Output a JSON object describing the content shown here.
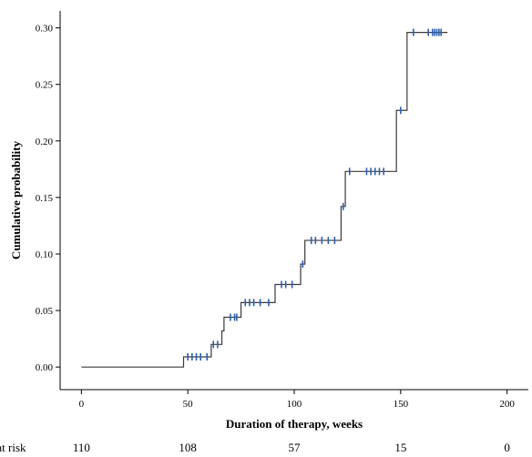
{
  "chart_data": {
    "type": "step",
    "xlabel": "Duration of therapy, weeks",
    "ylabel": "Cumulative probability",
    "xlim": [
      -10,
      210
    ],
    "ylim": [
      -0.02,
      0.315
    ],
    "x_ticks": [
      0,
      50,
      100,
      150,
      200
    ],
    "y_ticks": [
      0.0,
      0.05,
      0.1,
      0.15,
      0.2,
      0.25,
      0.3
    ],
    "y_tick_labels": [
      "0.00",
      "0.05",
      "0.10",
      "0.15",
      "0.20",
      "0.25",
      "0.30"
    ],
    "line_color": "#3a3a3a",
    "censor_color": "#2f5fae",
    "steps": [
      {
        "x": 0,
        "y": 0.0
      },
      {
        "x": 48,
        "y": 0.009
      },
      {
        "x": 61,
        "y": 0.02
      },
      {
        "x": 66,
        "y": 0.032
      },
      {
        "x": 67,
        "y": 0.044
      },
      {
        "x": 75,
        "y": 0.057
      },
      {
        "x": 91,
        "y": 0.073
      },
      {
        "x": 103,
        "y": 0.091
      },
      {
        "x": 105,
        "y": 0.112
      },
      {
        "x": 122,
        "y": 0.142
      },
      {
        "x": 124,
        "y": 0.173
      },
      {
        "x": 148,
        "y": 0.227
      },
      {
        "x": 153,
        "y": 0.296
      }
    ],
    "end_x": 172,
    "censored": [
      {
        "x": 50,
        "y": 0.009
      },
      {
        "x": 52,
        "y": 0.009
      },
      {
        "x": 54,
        "y": 0.009
      },
      {
        "x": 56,
        "y": 0.009
      },
      {
        "x": 59,
        "y": 0.009
      },
      {
        "x": 62,
        "y": 0.02
      },
      {
        "x": 64,
        "y": 0.02
      },
      {
        "x": 70,
        "y": 0.044
      },
      {
        "x": 72,
        "y": 0.044
      },
      {
        "x": 73,
        "y": 0.044
      },
      {
        "x": 77,
        "y": 0.057
      },
      {
        "x": 79,
        "y": 0.057
      },
      {
        "x": 81,
        "y": 0.057
      },
      {
        "x": 84,
        "y": 0.057
      },
      {
        "x": 88,
        "y": 0.057
      },
      {
        "x": 94,
        "y": 0.073
      },
      {
        "x": 96,
        "y": 0.073
      },
      {
        "x": 99,
        "y": 0.073
      },
      {
        "x": 104,
        "y": 0.091
      },
      {
        "x": 108,
        "y": 0.112
      },
      {
        "x": 110,
        "y": 0.112
      },
      {
        "x": 113,
        "y": 0.112
      },
      {
        "x": 116,
        "y": 0.112
      },
      {
        "x": 119,
        "y": 0.112
      },
      {
        "x": 123,
        "y": 0.142
      },
      {
        "x": 126,
        "y": 0.173
      },
      {
        "x": 134,
        "y": 0.173
      },
      {
        "x": 136,
        "y": 0.173
      },
      {
        "x": 138,
        "y": 0.173
      },
      {
        "x": 140,
        "y": 0.173
      },
      {
        "x": 142,
        "y": 0.173
      },
      {
        "x": 150,
        "y": 0.227
      },
      {
        "x": 156,
        "y": 0.296
      },
      {
        "x": 163,
        "y": 0.296
      },
      {
        "x": 165,
        "y": 0.296
      },
      {
        "x": 166,
        "y": 0.296
      },
      {
        "x": 167,
        "y": 0.296
      },
      {
        "x": 168,
        "y": 0.296
      },
      {
        "x": 169,
        "y": 0.296
      }
    ],
    "at_risk_label": "No. at risk",
    "at_risk": [
      {
        "x": 0,
        "n": "110"
      },
      {
        "x": 50,
        "n": "108"
      },
      {
        "x": 100,
        "n": "57"
      },
      {
        "x": 150,
        "n": "15"
      },
      {
        "x": 200,
        "n": "0"
      }
    ]
  }
}
